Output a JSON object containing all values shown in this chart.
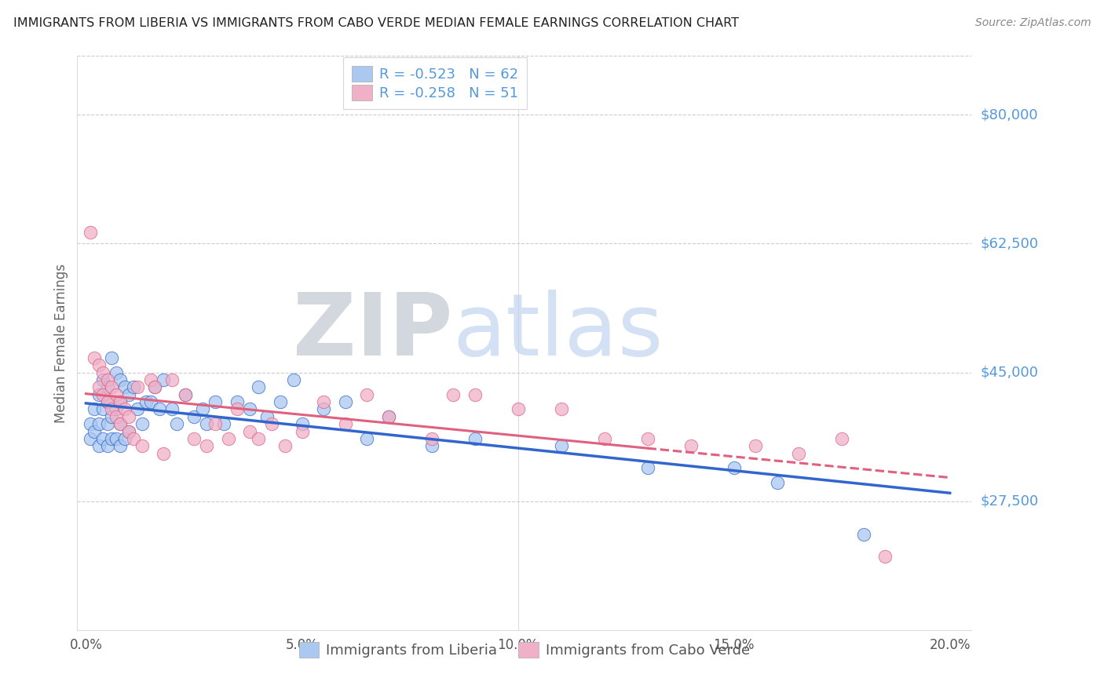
{
  "title": "IMMIGRANTS FROM LIBERIA VS IMMIGRANTS FROM CABO VERDE MEDIAN FEMALE EARNINGS CORRELATION CHART",
  "source": "Source: ZipAtlas.com",
  "ylabel": "Median Female Earnings",
  "xlabel_ticks": [
    "0.0%",
    "5.0%",
    "10.0%",
    "15.0%",
    "20.0%"
  ],
  "xlabel_vals": [
    0.0,
    0.05,
    0.1,
    0.15,
    0.2
  ],
  "ytick_labels": [
    "$27,500",
    "$45,000",
    "$62,500",
    "$80,000"
  ],
  "ytick_vals": [
    27500,
    45000,
    62500,
    80000
  ],
  "ylim": [
    10000,
    88000
  ],
  "xlim": [
    -0.002,
    0.205
  ],
  "legend1_label": "R = -0.523   N = 62",
  "legend2_label": "R = -0.258   N = 51",
  "legend1_color": "#aac8f0",
  "legend2_color": "#f0b0c8",
  "line1_color": "#3366cc",
  "line2_color": "#e06080",
  "watermark_zip": "ZIP",
  "watermark_atlas": "atlas",
  "background_color": "#ffffff",
  "grid_color": "#cccccc",
  "axis_color": "#5599dd",
  "liberia_x": [
    0.001,
    0.001,
    0.002,
    0.002,
    0.003,
    0.003,
    0.003,
    0.004,
    0.004,
    0.004,
    0.005,
    0.005,
    0.005,
    0.005,
    0.006,
    0.006,
    0.006,
    0.007,
    0.007,
    0.007,
    0.008,
    0.008,
    0.008,
    0.008,
    0.009,
    0.009,
    0.01,
    0.01,
    0.011,
    0.012,
    0.013,
    0.014,
    0.015,
    0.016,
    0.017,
    0.018,
    0.02,
    0.021,
    0.023,
    0.025,
    0.027,
    0.028,
    0.03,
    0.032,
    0.035,
    0.038,
    0.04,
    0.042,
    0.045,
    0.048,
    0.05,
    0.055,
    0.06,
    0.065,
    0.07,
    0.08,
    0.09,
    0.11,
    0.13,
    0.15,
    0.16,
    0.18
  ],
  "liberia_y": [
    38000,
    36000,
    40000,
    37000,
    42000,
    38000,
    35000,
    44000,
    40000,
    36000,
    43000,
    41000,
    38000,
    35000,
    47000,
    39000,
    36000,
    45000,
    40000,
    36000,
    44000,
    41000,
    38000,
    35000,
    43000,
    36000,
    42000,
    37000,
    43000,
    40000,
    38000,
    41000,
    41000,
    43000,
    40000,
    44000,
    40000,
    38000,
    42000,
    39000,
    40000,
    38000,
    41000,
    38000,
    41000,
    40000,
    43000,
    39000,
    41000,
    44000,
    38000,
    40000,
    41000,
    36000,
    39000,
    35000,
    36000,
    35000,
    32000,
    32000,
    30000,
    23000
  ],
  "caboverde_x": [
    0.001,
    0.002,
    0.003,
    0.003,
    0.004,
    0.004,
    0.005,
    0.005,
    0.006,
    0.006,
    0.007,
    0.007,
    0.008,
    0.008,
    0.009,
    0.01,
    0.01,
    0.011,
    0.012,
    0.013,
    0.015,
    0.016,
    0.018,
    0.02,
    0.023,
    0.025,
    0.028,
    0.03,
    0.033,
    0.035,
    0.038,
    0.04,
    0.043,
    0.046,
    0.05,
    0.055,
    0.06,
    0.065,
    0.07,
    0.08,
    0.085,
    0.09,
    0.1,
    0.11,
    0.12,
    0.13,
    0.14,
    0.155,
    0.165,
    0.175,
    0.185
  ],
  "caboverde_y": [
    64000,
    47000,
    46000,
    43000,
    45000,
    42000,
    44000,
    41000,
    43000,
    40000,
    42000,
    39000,
    41000,
    38000,
    40000,
    39000,
    37000,
    36000,
    43000,
    35000,
    44000,
    43000,
    34000,
    44000,
    42000,
    36000,
    35000,
    38000,
    36000,
    40000,
    37000,
    36000,
    38000,
    35000,
    37000,
    41000,
    38000,
    42000,
    39000,
    36000,
    42000,
    42000,
    40000,
    40000,
    36000,
    36000,
    35000,
    35000,
    34000,
    36000,
    20000
  ]
}
